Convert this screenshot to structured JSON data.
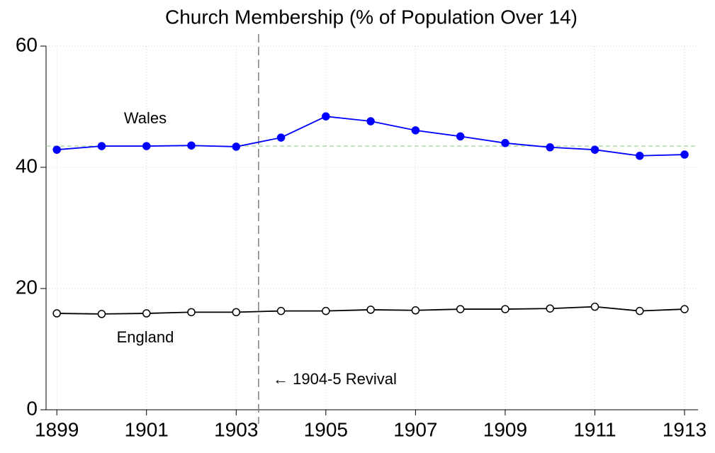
{
  "chart_data": {
    "type": "line",
    "title": "Church Membership (% of Population Over 14)",
    "x": [
      1899,
      1900,
      1901,
      1902,
      1903,
      1904,
      1905,
      1906,
      1907,
      1908,
      1909,
      1910,
      1911,
      1912,
      1913
    ],
    "series": [
      {
        "name": "Wales",
        "color": "#0000ff",
        "marker": "filled",
        "values": [
          42.9,
          43.5,
          43.5,
          43.6,
          43.4,
          44.9,
          48.4,
          47.6,
          46.1,
          45.1,
          44.0,
          43.3,
          42.9,
          41.9,
          42.1
        ]
      },
      {
        "name": "England",
        "color": "#000000",
        "marker": "hollow",
        "values": [
          15.9,
          15.8,
          15.9,
          16.1,
          16.1,
          16.3,
          16.3,
          16.5,
          16.4,
          16.6,
          16.6,
          16.7,
          17.0,
          16.3,
          16.6
        ]
      }
    ],
    "xlim": [
      1898.76,
      1913.3
    ],
    "xticks": [
      1899,
      1901,
      1903,
      1905,
      1907,
      1909,
      1911,
      1913
    ],
    "ylim": [
      0,
      60
    ],
    "yticks": [
      0,
      20,
      40,
      60
    ],
    "grid": true,
    "vline": {
      "value": 1903.5,
      "color": "#808080"
    },
    "hline": {
      "value": 43.5,
      "color": "#90d090"
    },
    "annotations": [
      "← 1904-5 Revival"
    ]
  }
}
